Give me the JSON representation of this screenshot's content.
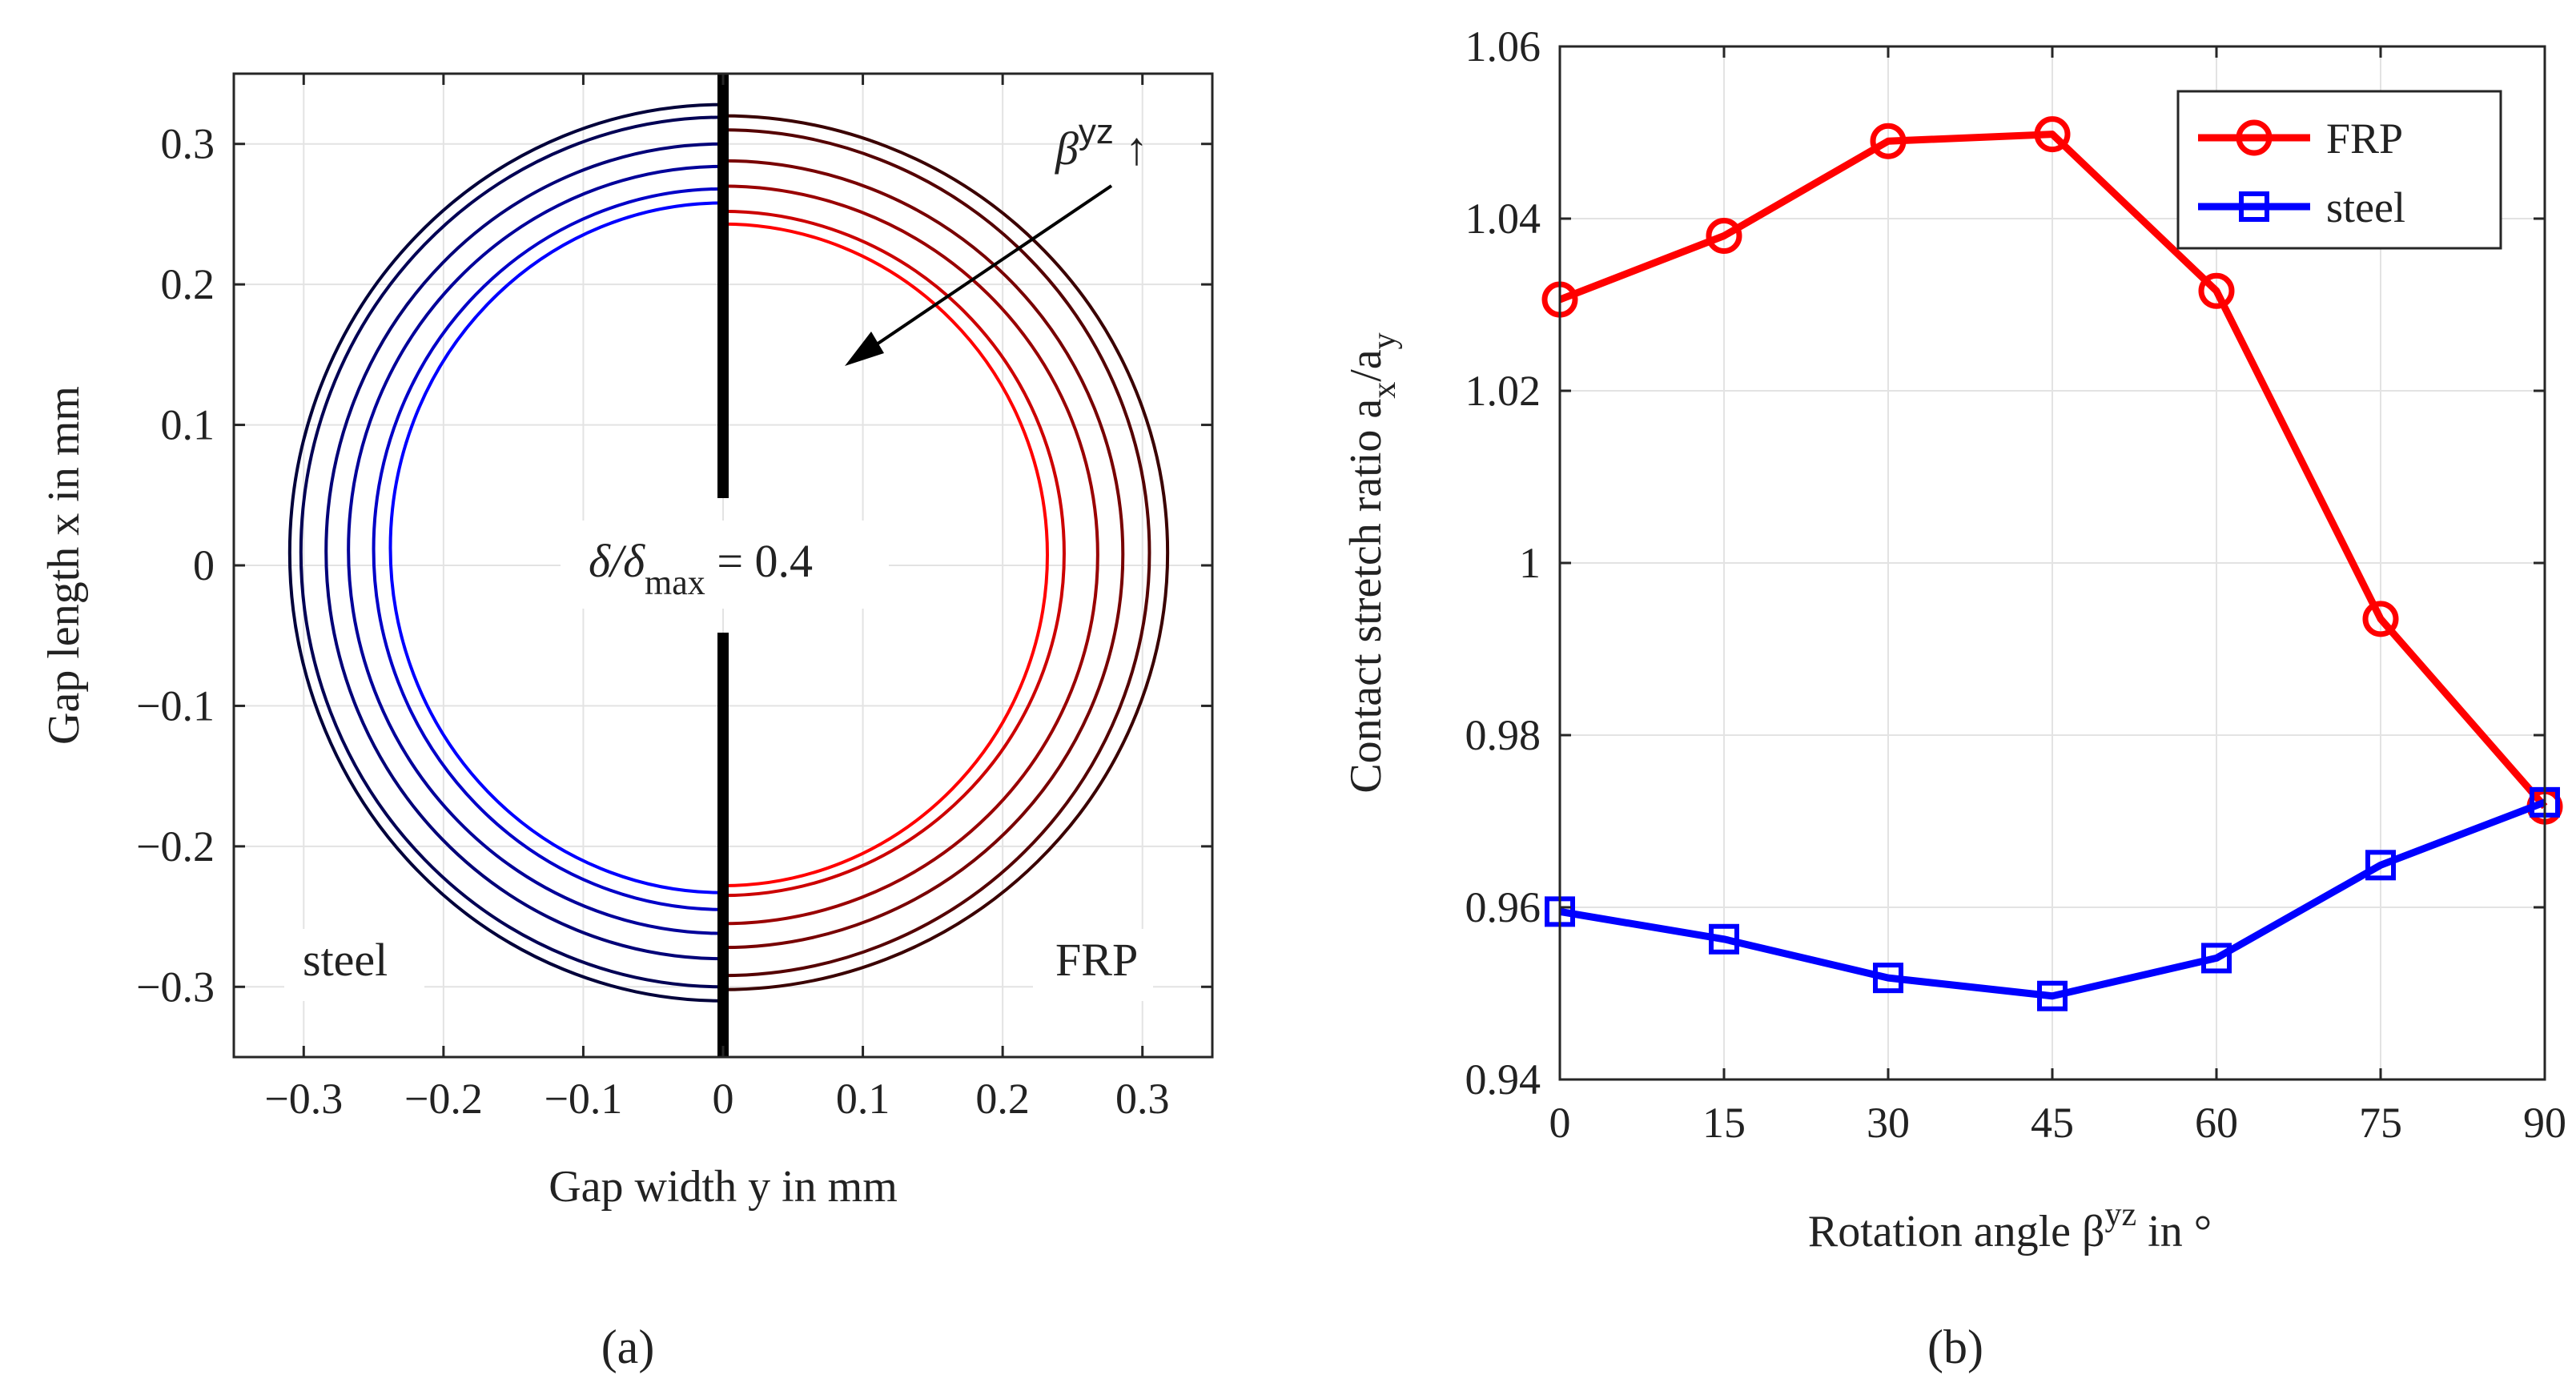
{
  "chart_data": [
    {
      "id": "a",
      "type": "line",
      "panel_label": "(a)",
      "xlabel": "Gap width y in mm",
      "ylabel": "Gap length x in mm",
      "xlim": [
        -0.35,
        0.35
      ],
      "ylim": [
        -0.35,
        0.35
      ],
      "xticks": [
        "−0.3",
        "−0.2",
        "−0.1",
        "0",
        "0.1",
        "0.2",
        "0.3"
      ],
      "xtick_values": [
        -0.3,
        -0.2,
        -0.1,
        0,
        0.1,
        0.2,
        0.3
      ],
      "yticks": [
        "0.3",
        "0.2",
        "0.1",
        "0",
        "−0.1",
        "−0.2",
        "−0.3"
      ],
      "ytick_values": [
        0.3,
        0.2,
        0.1,
        0,
        -0.1,
        -0.2,
        -0.3
      ],
      "grid": true,
      "annotations": {
        "delta_ratio": "δ/δ",
        "delta_subscript": "max",
        "delta_value": " = 0.4",
        "beta_symbol": "β",
        "beta_superscript": "yz",
        "beta_arrow": "↑",
        "left_material": "steel",
        "right_material": "FRP"
      },
      "series": [
        {
          "name": "steel",
          "side": "left",
          "color": "#0000ff",
          "y_extent": 0.238,
          "x_top": 0.258,
          "x_bottom": -0.233
        },
        {
          "name": "steel",
          "side": "left",
          "color": "#0000c8",
          "y_extent": 0.25,
          "x_top": 0.268,
          "x_bottom": -0.245
        },
        {
          "name": "steel",
          "side": "left",
          "color": "#00009a",
          "y_extent": 0.268,
          "x_top": 0.284,
          "x_bottom": -0.262
        },
        {
          "name": "steel",
          "side": "left",
          "color": "#000078",
          "y_extent": 0.284,
          "x_top": 0.3,
          "x_bottom": -0.28
        },
        {
          "name": "steel",
          "side": "left",
          "color": "#000055",
          "y_extent": 0.302,
          "x_top": 0.319,
          "x_bottom": -0.3
        },
        {
          "name": "steel",
          "side": "left",
          "color": "#00003a",
          "y_extent": 0.31,
          "x_top": 0.328,
          "x_bottom": -0.31
        },
        {
          "name": "FRP",
          "side": "right",
          "color": "#ff0000",
          "y_extent": 0.232,
          "x_top": 0.243,
          "x_bottom": -0.228
        },
        {
          "name": "FRP",
          "side": "right",
          "color": "#cc0000",
          "y_extent": 0.244,
          "x_top": 0.252,
          "x_bottom": -0.235
        },
        {
          "name": "FRP",
          "side": "right",
          "color": "#9a0000",
          "y_extent": 0.268,
          "x_top": 0.27,
          "x_bottom": -0.255
        },
        {
          "name": "FRP",
          "side": "right",
          "color": "#780000",
          "y_extent": 0.286,
          "x_top": 0.288,
          "x_bottom": -0.272
        },
        {
          "name": "FRP",
          "side": "right",
          "color": "#550000",
          "y_extent": 0.305,
          "x_top": 0.31,
          "x_bottom": -0.292
        },
        {
          "name": "FRP",
          "side": "right",
          "color": "#3a0000",
          "y_extent": 0.318,
          "x_top": 0.32,
          "x_bottom": -0.302
        }
      ]
    },
    {
      "id": "b",
      "type": "line",
      "panel_label": "(b)",
      "xlabel": "Rotation angle β",
      "xlabel_superscript": "yz",
      "xlabel_suffix": " in °",
      "ylabel": "Contact stretch ratio a",
      "ylabel_sub1": "x",
      "ylabel_mid": "/a",
      "ylabel_sub2": "y",
      "x": [
        0,
        15,
        30,
        45,
        60,
        75,
        90
      ],
      "xlim": [
        0,
        90
      ],
      "ylim": [
        0.94,
        1.06
      ],
      "xticks": [
        "0",
        "15",
        "30",
        "45",
        "60",
        "75",
        "90"
      ],
      "yticks": [
        "1.06",
        "1.04",
        "1.02",
        "1",
        "0.98",
        "0.96",
        "0.94"
      ],
      "ytick_values": [
        1.06,
        1.04,
        1.02,
        1.0,
        0.98,
        0.96,
        0.94
      ],
      "grid": true,
      "legend_position": "top-right",
      "series": [
        {
          "name": "FRP",
          "color": "#ff0000",
          "marker": "circle",
          "values": [
            1.0306,
            1.038,
            1.049,
            1.0498,
            1.0316,
            0.9935,
            0.9717
          ]
        },
        {
          "name": "steel",
          "color": "#0000ff",
          "marker": "square",
          "values": [
            0.9595,
            0.9563,
            0.9518,
            0.9497,
            0.9541,
            0.9649,
            0.9722
          ]
        }
      ]
    }
  ]
}
